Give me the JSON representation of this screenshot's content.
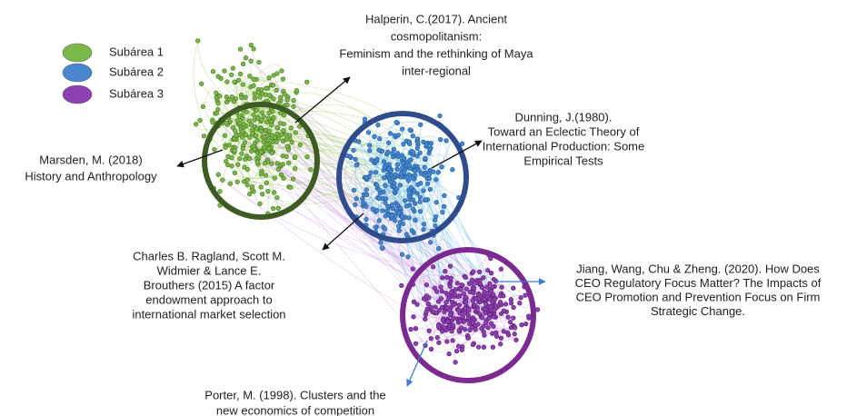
{
  "legend": [
    {
      "label": "Subárea 1",
      "color": "#7ab84a"
    },
    {
      "label": "Subárea 2",
      "color": "#4a86d0"
    },
    {
      "label": "Subárea 3",
      "color": "#8e3fb0"
    }
  ],
  "annotations": [
    {
      "lines": [
        "Halperin, C.(2017). Ancient",
        "cosmopolitanism:",
        "Feminism and the rethinking of Maya",
        "inter-regional"
      ]
    },
    {
      "lines": [
        "Marsden, M. (2018)",
        "History and Anthropology"
      ]
    },
    {
      "lines": [
        "Dunning,  J.(1980).",
        "Toward  an Eclectic Theory  of",
        "International Production: Some",
        "Empirical Tests"
      ]
    },
    {
      "lines": [
        "Charles B. Ragland, Scott M.",
        "Widmier & Lance E.",
        "Brouthers (2015) A factor",
        "endowment approach to",
        "international market selection"
      ]
    },
    {
      "lines": [
        "Jiang, Wang, Chu & Zheng. (2020). How Does",
        "CEO Regulatory  Focus Matter? The Impacts of",
        "CEO Promotion  and Prevention  Focus on Firm",
        "Strategic Change."
      ]
    },
    {
      "lines": [
        "Porter, M. (1998). Clusters and the",
        "new economics of competition"
      ]
    }
  ]
}
